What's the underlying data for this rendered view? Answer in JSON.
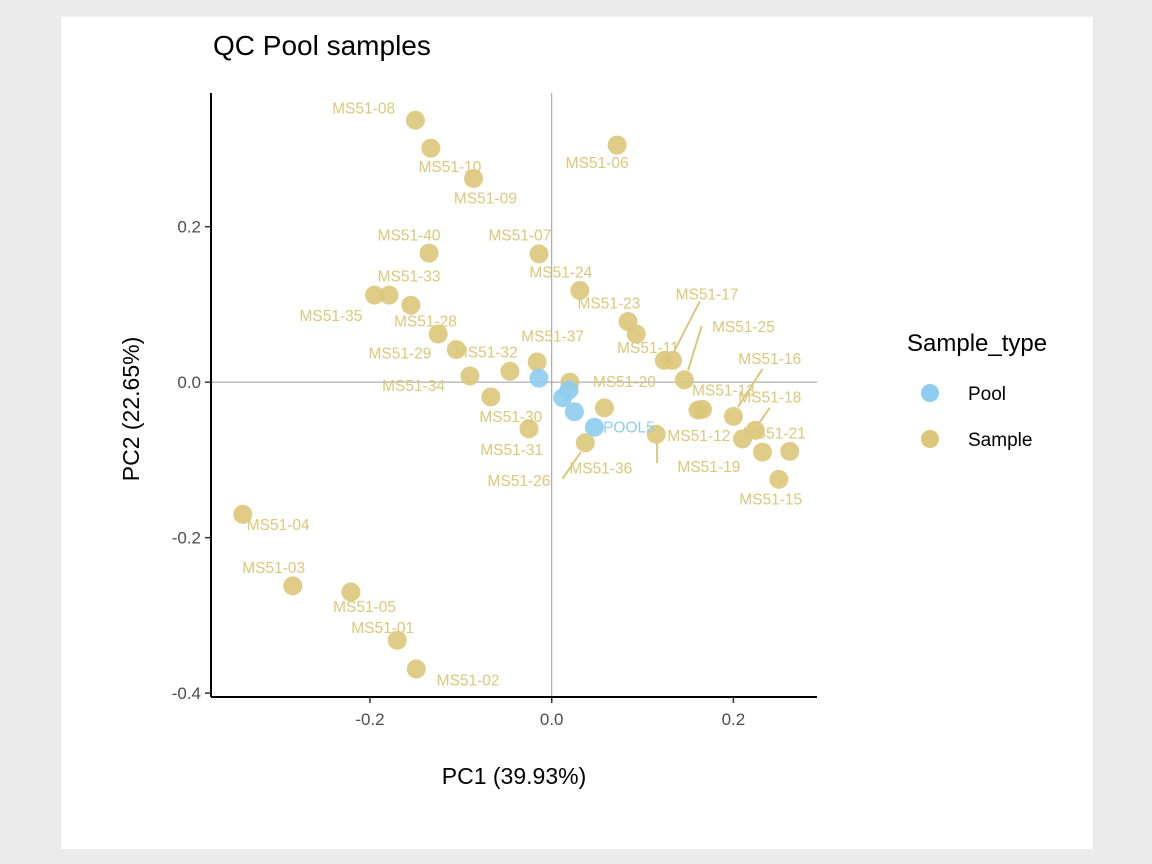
{
  "colors": {
    "pool": "#8ecdf0",
    "sample": "#dcc77a",
    "axis": "#000000",
    "refline": "#9a9a9a",
    "panel": "#ffffff",
    "background": "#ebebeb"
  },
  "chart_data": {
    "type": "scatter",
    "title": "QC Pool samples",
    "xlabel": "PC1 (39.93%)",
    "ylabel": "PC2 (22.65%)",
    "xlim": [
      -0.375,
      0.292
    ],
    "ylim": [
      -0.405,
      0.372
    ],
    "xticks": [
      -0.2,
      0.0,
      0.2
    ],
    "xtick_labels": [
      "-0.2",
      "0.0",
      "0.2"
    ],
    "yticks": [
      -0.4,
      -0.2,
      0.0,
      0.2
    ],
    "ytick_labels": [
      "-0.4",
      "-0.2",
      "0.0",
      "0.2"
    ],
    "grid": false,
    "reference_lines": {
      "x": 0,
      "y": 0
    },
    "legend": {
      "title": "Sample_type",
      "position": "right",
      "entries": [
        {
          "label": "Pool",
          "key": "pool"
        },
        {
          "label": "Sample",
          "key": "sample"
        }
      ]
    },
    "series": [
      {
        "name": "Pool",
        "key": "pool",
        "points": [
          {
            "x": -0.014,
            "y": 0.005
          },
          {
            "x": 0.012,
            "y": -0.02
          },
          {
            "x": 0.019,
            "y": -0.01
          },
          {
            "x": 0.025,
            "y": -0.038
          },
          {
            "x": 0.047,
            "y": -0.058,
            "label": "POOL5",
            "lx": 0.085,
            "ly": -0.058
          }
        ]
      },
      {
        "name": "Sample",
        "key": "sample",
        "points": [
          {
            "x": -0.15,
            "y": 0.337,
            "label": "MS51-08",
            "lx": -0.207,
            "ly": 0.352
          },
          {
            "x": -0.133,
            "y": 0.301
          },
          {
            "x": -0.086,
            "y": 0.262,
            "label": "MS51-10",
            "lx": -0.112,
            "ly": 0.277
          },
          {
            "x": 0.072,
            "y": 0.305,
            "label": "MS51-06",
            "lx": 0.05,
            "ly": 0.282
          },
          {
            "x": -0.135,
            "y": 0.166,
            "label": "MS51-40",
            "lx": -0.157,
            "ly": 0.189
          },
          {
            "x": -0.014,
            "y": 0.165,
            "label": "MS51-07",
            "lx": -0.035,
            "ly": 0.189
          },
          {
            "x": 0.031,
            "y": 0.118,
            "label": "MS51-24",
            "lx": 0.01,
            "ly": 0.141
          },
          {
            "x": -0.195,
            "y": 0.112,
            "label": "MS51-33",
            "lx": -0.157,
            "ly": 0.136
          },
          {
            "x": -0.179,
            "y": 0.112
          },
          {
            "x": -0.155,
            "y": 0.099,
            "label": "MS51-35",
            "lx": -0.243,
            "ly": 0.085
          },
          {
            "x": -0.125,
            "y": 0.062,
            "label": "MS51-28",
            "lx": -0.139,
            "ly": 0.078
          },
          {
            "x": -0.105,
            "y": 0.042,
            "label": "MS51-29",
            "lx": -0.167,
            "ly": 0.037
          },
          {
            "x": -0.09,
            "y": 0.008,
            "label": "MS51-32",
            "lx": -0.072,
            "ly": 0.038
          },
          {
            "x": -0.046,
            "y": 0.014,
            "label": "MS51-34",
            "lx": -0.152,
            "ly": -0.005
          },
          {
            "x": -0.016,
            "y": 0.026,
            "label": "MS51-37",
            "lx": 0.001,
            "ly": 0.059
          },
          {
            "x": -0.067,
            "y": -0.019,
            "label": "MS51-30",
            "lx": -0.045,
            "ly": -0.045
          },
          {
            "x": -0.025,
            "y": -0.06,
            "label": "MS51-31",
            "lx": -0.044,
            "ly": -0.087
          },
          {
            "x": 0.02,
            "y": 0.0,
            "label": "MS51-20",
            "lx": 0.08,
            "ly": 0.0
          },
          {
            "x": 0.058,
            "y": -0.033
          },
          {
            "x": 0.037,
            "y": -0.078,
            "label": "MS51-36",
            "lx": 0.054,
            "ly": -0.111
          },
          {
            "x": 0.084,
            "y": 0.078,
            "label": "MS51-23",
            "lx": 0.063,
            "ly": 0.101
          },
          {
            "x": 0.093,
            "y": 0.062,
            "label": "MS51-11",
            "lx": 0.106,
            "ly": 0.044
          },
          {
            "x": 0.124,
            "y": 0.028
          },
          {
            "x": 0.133,
            "y": 0.028
          },
          {
            "x": 0.146,
            "y": 0.003
          },
          {
            "x": 0.161,
            "y": -0.036
          },
          {
            "x": 0.166,
            "y": -0.035,
            "label": "MS51-13",
            "lx": 0.189,
            "ly": -0.011
          },
          {
            "x": 0.2,
            "y": -0.044
          },
          {
            "x": 0.21,
            "y": -0.073
          },
          {
            "x": 0.224,
            "y": -0.062,
            "label": "MS51-21",
            "lx": 0.245,
            "ly": -0.066
          },
          {
            "x": 0.232,
            "y": -0.09
          },
          {
            "x": 0.262,
            "y": -0.089
          },
          {
            "x": 0.25,
            "y": -0.125,
            "label": "MS51-15",
            "lx": 0.241,
            "ly": -0.151
          },
          {
            "x": 0.115,
            "y": -0.067,
            "label": "MS51-12",
            "lx": 0.162,
            "ly": -0.069
          },
          {
            "x": -0.34,
            "y": -0.17,
            "label": "MS51-04",
            "lx": -0.301,
            "ly": -0.184
          },
          {
            "x": -0.285,
            "y": -0.262,
            "label": "MS51-03",
            "lx": -0.306,
            "ly": -0.239
          },
          {
            "x": -0.221,
            "y": -0.27,
            "label": "MS51-05",
            "lx": -0.206,
            "ly": -0.289
          },
          {
            "x": -0.17,
            "y": -0.332,
            "label": "MS51-01",
            "lx": -0.186,
            "ly": -0.316
          },
          {
            "x": -0.149,
            "y": -0.369,
            "label": "MS51-02",
            "lx": -0.092,
            "ly": -0.384
          }
        ],
        "extra_labels": [
          {
            "label": "MS51-09",
            "lx": -0.073,
            "ly": 0.236
          },
          {
            "label": "MS51-17",
            "lx": 0.171,
            "ly": 0.113,
            "x1": 0.163,
            "y1": 0.104,
            "x2": 0.135,
            "y2": 0.04
          },
          {
            "label": "MS51-25",
            "lx": 0.211,
            "ly": 0.071,
            "x1": 0.165,
            "y1": 0.072,
            "x2": 0.15,
            "y2": 0.015
          },
          {
            "label": "MS51-16",
            "lx": 0.24,
            "ly": 0.03,
            "x1": 0.232,
            "y1": 0.017,
            "x2": 0.205,
            "y2": -0.032
          },
          {
            "label": "MS51-18",
            "lx": 0.24,
            "ly": -0.02,
            "x1": 0.24,
            "y1": -0.033,
            "x2": 0.228,
            "y2": -0.053
          },
          {
            "label": "MS51-19",
            "lx": 0.173,
            "ly": -0.109,
            "x1": 0.116,
            "y1": -0.079,
            "x2": 0.116,
            "y2": -0.104
          },
          {
            "label": "MS51-26",
            "lx": -0.036,
            "ly": -0.127,
            "x1": 0.012,
            "y1": -0.124,
            "x2": 0.032,
            "y2": -0.09
          }
        ]
      }
    ]
  }
}
